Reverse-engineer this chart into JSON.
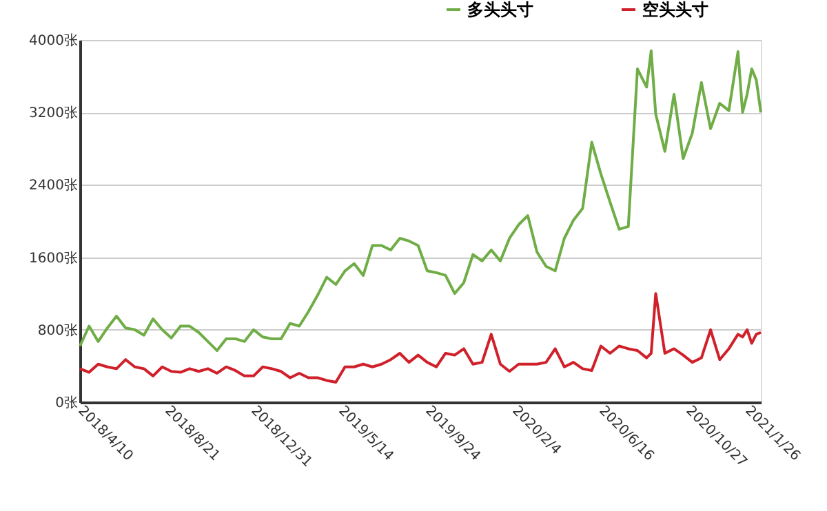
{
  "chart_data": {
    "type": "line",
    "x": [
      "2018-04-10",
      "2018-04-24",
      "2018-05-08",
      "2018-05-22",
      "2018-06-05",
      "2018-06-19",
      "2018-07-03",
      "2018-07-17",
      "2018-07-31",
      "2018-08-14",
      "2018-08-28",
      "2018-09-11",
      "2018-09-25",
      "2018-10-09",
      "2018-10-23",
      "2018-11-06",
      "2018-11-20",
      "2018-12-04",
      "2018-12-18",
      "2019-01-01",
      "2019-01-15",
      "2019-01-29",
      "2019-02-12",
      "2019-02-26",
      "2019-03-12",
      "2019-03-26",
      "2019-04-09",
      "2019-04-23",
      "2019-05-07",
      "2019-05-21",
      "2019-06-04",
      "2019-06-18",
      "2019-07-02",
      "2019-07-16",
      "2019-07-30",
      "2019-08-13",
      "2019-08-27",
      "2019-09-10",
      "2019-09-24",
      "2019-10-08",
      "2019-10-22",
      "2019-11-05",
      "2019-11-19",
      "2019-12-03",
      "2019-12-17",
      "2019-12-31",
      "2020-01-14",
      "2020-01-28",
      "2020-02-11",
      "2020-02-25",
      "2020-03-10",
      "2020-03-24",
      "2020-04-07",
      "2020-04-21",
      "2020-05-05",
      "2020-05-19",
      "2020-06-02",
      "2020-06-16",
      "2020-06-30",
      "2020-07-14",
      "2020-07-28",
      "2020-08-11",
      "2020-08-25",
      "2020-09-01",
      "2020-09-08",
      "2020-09-22",
      "2020-10-06",
      "2020-10-20",
      "2020-11-03",
      "2020-11-17",
      "2020-12-01",
      "2020-12-15",
      "2020-12-29",
      "2021-01-12",
      "2021-01-19",
      "2021-01-26",
      "2021-02-02",
      "2021-02-09",
      "2021-02-16"
    ],
    "series": [
      {
        "name": "多头头寸",
        "color": "#70ad47",
        "values": [
          620,
          840,
          670,
          820,
          950,
          820,
          800,
          740,
          920,
          800,
          710,
          840,
          840,
          770,
          670,
          570,
          700,
          700,
          670,
          800,
          720,
          700,
          700,
          870,
          840,
          1000,
          1180,
          1380,
          1300,
          1450,
          1530,
          1400,
          1730,
          1730,
          1680,
          1810,
          1780,
          1730,
          1450,
          1430,
          1400,
          1200,
          1320,
          1630,
          1560,
          1680,
          1560,
          1810,
          1960,
          2060,
          1660,
          1500,
          1450,
          1810,
          2010,
          2140,
          2870,
          2520,
          2210,
          1910,
          1940,
          3680,
          3480,
          3880,
          3180,
          2770,
          3400,
          2690,
          2970,
          3530,
          3020,
          3300,
          3220,
          3870,
          3200,
          3400,
          3680,
          3560,
          3200
        ]
      },
      {
        "name": "空头头寸",
        "color": "#d0202a",
        "values": [
          370,
          330,
          420,
          390,
          370,
          470,
          390,
          370,
          290,
          390,
          340,
          330,
          370,
          340,
          370,
          320,
          390,
          350,
          290,
          290,
          390,
          370,
          340,
          270,
          320,
          270,
          270,
          240,
          220,
          390,
          390,
          420,
          390,
          420,
          470,
          540,
          440,
          520,
          440,
          390,
          540,
          520,
          590,
          420,
          440,
          750,
          420,
          340,
          420,
          420,
          420,
          440,
          590,
          390,
          440,
          370,
          350,
          620,
          540,
          620,
          590,
          570,
          490,
          540,
          1200,
          540,
          590,
          520,
          440,
          490,
          800,
          470,
          590,
          750,
          720,
          800,
          650,
          750,
          770
        ]
      }
    ],
    "xlim": [
      "2018-04-10",
      "2021-02-16"
    ],
    "xticks": [
      {
        "value": "2018-04-10",
        "label": "2018/4/10"
      },
      {
        "value": "2018-08-21",
        "label": "2018/8/21"
      },
      {
        "value": "2018-12-31",
        "label": "2018/12/31"
      },
      {
        "value": "2019-05-14",
        "label": "2019/5/14"
      },
      {
        "value": "2019-09-24",
        "label": "2019/9/24"
      },
      {
        "value": "2020-02-04",
        "label": "2020/2/4"
      },
      {
        "value": "2020-06-16",
        "label": "2020/6/16"
      },
      {
        "value": "2020-10-27",
        "label": "2020/10/27"
      },
      {
        "value": "2021-01-26",
        "label": "2021/1/26"
      }
    ],
    "ylim": [
      0,
      4000
    ],
    "yticks": [
      {
        "value": 0,
        "label": "0张"
      },
      {
        "value": 800,
        "label": "800张"
      },
      {
        "value": 1600,
        "label": "1600张"
      },
      {
        "value": 2400,
        "label": "2400张"
      },
      {
        "value": 3200,
        "label": "3200张"
      },
      {
        "value": 4000,
        "label": "4000张"
      }
    ],
    "grid": "y",
    "legend": "top right",
    "marker": "none",
    "line_style": "solid"
  }
}
